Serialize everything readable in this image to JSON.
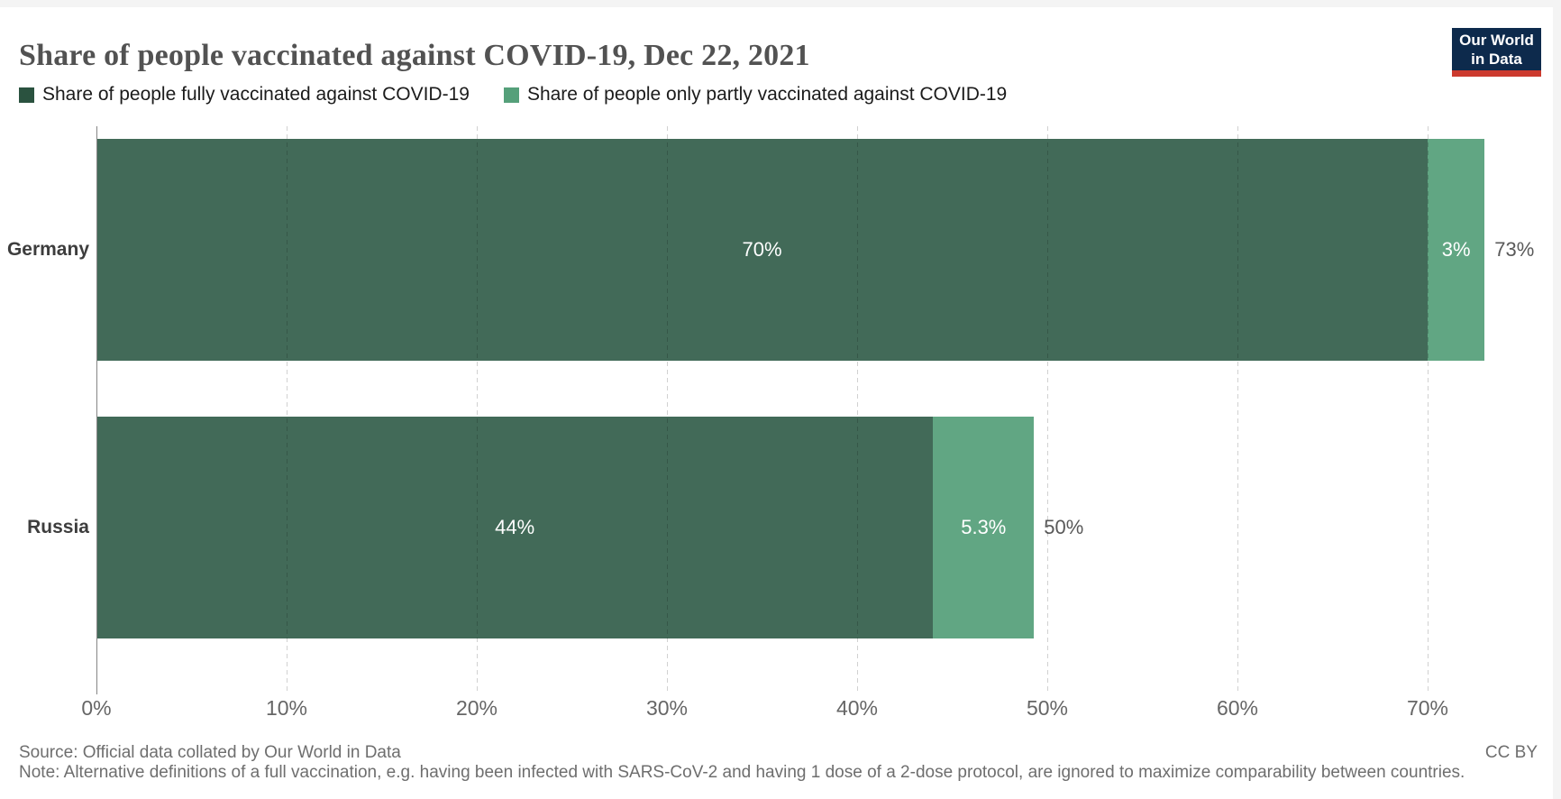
{
  "header": {
    "title": "Share of people vaccinated against COVID-19, Dec 22, 2021"
  },
  "logo": {
    "line1": "Our World",
    "line2": "in Data",
    "bg_color": "#0D2A4C",
    "underline_color": "#CC3A2E"
  },
  "legend": {
    "items": [
      {
        "label": "Share of people fully vaccinated against COVID-19",
        "swatch_color": "#2A523F"
      },
      {
        "label": "Share of people only partly vaccinated against COVID-19",
        "swatch_color": "#55A07A"
      }
    ]
  },
  "chart_data": {
    "type": "bar",
    "orientation": "horizontal",
    "stacked": true,
    "title": "Share of people vaccinated against COVID-19, Dec 22, 2021",
    "categories": [
      "Germany",
      "Russia"
    ],
    "series": [
      {
        "name": "Share of people fully vaccinated against COVID-19",
        "color": "#426A58",
        "values": [
          70,
          44
        ],
        "labels": [
          "70%",
          "44%"
        ]
      },
      {
        "name": "Share of people only partly vaccinated against COVID-19",
        "color": "#61A683",
        "values": [
          3,
          5.3
        ],
        "labels": [
          "3%",
          "5.3%"
        ]
      }
    ],
    "totals": [
      "73%",
      "50%"
    ],
    "x_ticks": [
      "0%",
      "10%",
      "20%",
      "30%",
      "40%",
      "50%",
      "60%",
      "70%"
    ],
    "xlim": [
      0,
      73
    ],
    "grid": "dashed-vertical",
    "legend_position": "top-left"
  },
  "footer": {
    "source": "Source: Official data collated by Our World in Data",
    "note": "Note: Alternative definitions of a full vaccination, e.g. having been infected with SARS-CoV-2 and having 1 dose of a 2-dose protocol, are ignored to maximize comparability between countries.",
    "license": "CC BY"
  }
}
